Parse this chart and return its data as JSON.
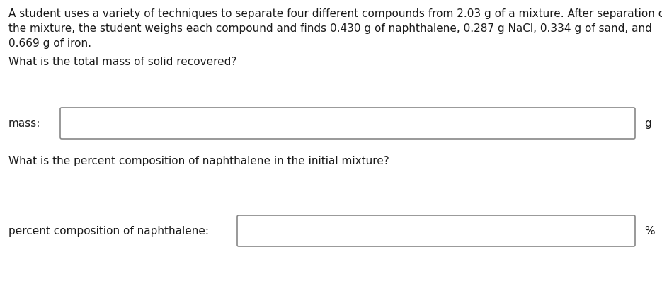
{
  "background_color": "#ffffff",
  "line1": "A student uses a variety of techniques to separate four different compounds from 2.03 g of a mixture. After separation of",
  "line2": "the mixture, the student weighs each compound and finds 0.430 g of naphthalene, 0.287 g NaCl, 0.334 g of sand, and",
  "line3": "0.669 g of iron.",
  "question1": "What is the total mass of solid recovered?",
  "label1": "mass:",
  "unit1": "g",
  "question2": "What is the percent composition of naphthalene in the initial mixture?",
  "label2": "percent composition of naphthalene:",
  "unit2": "%",
  "text_color": "#1a1a1a",
  "box_edge_color": "#888888",
  "font_size": 11.0
}
